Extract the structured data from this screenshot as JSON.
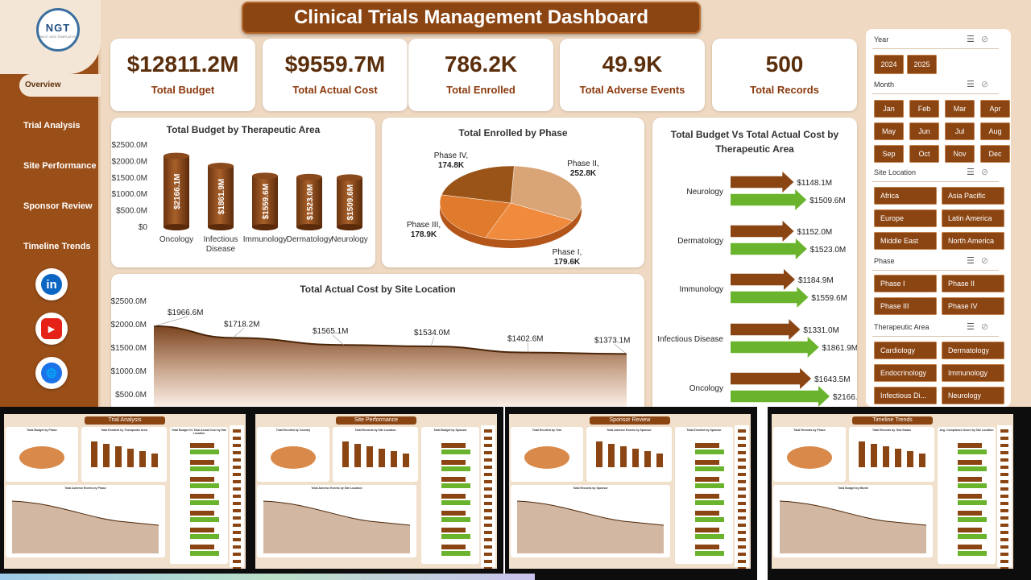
{
  "logo": {
    "text": "NGT",
    "sub": "NEXT GEN TEMPLATES"
  },
  "title": "Clinical Trials Management Dashboard",
  "nav": [
    {
      "label": "Overview",
      "active": true
    },
    {
      "label": "Trial Analysis"
    },
    {
      "label": "Site Performance"
    },
    {
      "label": "Sponsor Review"
    },
    {
      "label": "Timeline Trends"
    }
  ],
  "social": [
    {
      "name": "linkedin-icon",
      "text": "in",
      "color": "#0a66c2"
    },
    {
      "name": "youtube-icon",
      "text": "▶",
      "color": "#e62117"
    },
    {
      "name": "web-icon",
      "text": "🌐",
      "color": "#1a73e8"
    }
  ],
  "kpis": [
    {
      "value": "$12811.2M",
      "label": "Total Budget"
    },
    {
      "value": "$9559.7M",
      "label": "Total Actual Cost"
    },
    {
      "value": "786.2K",
      "label": "Total Enrolled"
    },
    {
      "value": "49.9K",
      "label": "Total Adverse Events"
    },
    {
      "value": "500",
      "label": "Total Records"
    }
  ],
  "colors": {
    "accent": "#8b4513",
    "dark": "#5b2e0c",
    "green": "#6ab42d",
    "bg": "#efd9c2"
  },
  "chart_data": [
    {
      "type": "bar",
      "title": "Total Budget by Therapeutic Area",
      "categories": [
        "Oncology",
        "Infectious Disease",
        "Immunology",
        "Dermatology",
        "Neurology"
      ],
      "values": [
        2166.1,
        1861.9,
        1559.6,
        1523.0,
        1509.6
      ],
      "data_labels": [
        "$2166.1M",
        "$1861.9M",
        "$1559.6M",
        "$1523.0M",
        "$1509.6M"
      ],
      "yticks": [
        "$2500.0M",
        "$2000.0M",
        "$1500.0M",
        "$1000.0M",
        "$500.0M",
        "$0"
      ],
      "ylim": [
        0,
        2500
      ]
    },
    {
      "type": "pie",
      "title": "Total Enrolled by Phase",
      "slices": [
        {
          "name": "Phase II",
          "value": 252.8,
          "label": "Phase II,\n252.8K",
          "color": "#d9a577"
        },
        {
          "name": "Phase I",
          "value": 179.6,
          "label": "Phase I,\n179.6K",
          "color": "#f08a3c"
        },
        {
          "name": "Phase III",
          "value": 178.9,
          "label": "Phase III,\n178.9K",
          "color": "#e07a2c"
        },
        {
          "name": "Phase IV",
          "value": 174.8,
          "label": "Phase IV,\n174.8K",
          "color": "#9a5418"
        }
      ]
    },
    {
      "type": "bar",
      "title": "Total Budget Vs Total Actual Cost by Therapeutic Area",
      "categories": [
        "Neurology",
        "Dermatology",
        "Immunology",
        "Infectious Disease",
        "Oncology"
      ],
      "series": [
        {
          "values": [
            1148.1,
            1152.0,
            1184.9,
            1331.0,
            1643.5
          ],
          "labels": [
            "$1148.1M",
            "$1152.0M",
            "$1184.9M",
            "$1331.0M",
            "$1643.5M"
          ],
          "color": "#8b4513"
        },
        {
          "values": [
            1509.6,
            1523.0,
            1559.6,
            1861.9,
            2166.1
          ],
          "labels": [
            "$1509.6M",
            "$1523.0M",
            "$1559.6M",
            "$1861.9M",
            "$2166.1M"
          ],
          "color": "#6ab42d"
        }
      ]
    },
    {
      "type": "area",
      "title": "Total Actual Cost by Site Location",
      "values": [
        1966.6,
        1718.2,
        1565.1,
        1534.0,
        1402.6,
        1373.1
      ],
      "data_labels": [
        "$1966.6M",
        "$1718.2M",
        "$1565.1M",
        "$1534.0M",
        "$1402.6M",
        "$1373.1M"
      ],
      "yticks": [
        "$2500.0M",
        "$2000.0M",
        "$1500.0M",
        "$1000.0M",
        "$500.0M"
      ],
      "ylim": [
        0,
        2500
      ]
    }
  ],
  "slicers": [
    {
      "title": "Year",
      "items": [
        "2024",
        "2025"
      ]
    },
    {
      "title": "Month",
      "items": [
        "Jan",
        "Feb",
        "Mar",
        "Apr",
        "May",
        "Jun",
        "Jul",
        "Aug",
        "Sep",
        "Oct",
        "Nov",
        "Dec"
      ]
    },
    {
      "title": "Site Location",
      "items": [
        "Africa",
        "Asia Pacific",
        "Europe",
        "Latin America",
        "Middle East",
        "North America"
      ]
    },
    {
      "title": "Phase",
      "items": [
        "Phase I",
        "Phase II",
        "Phase III",
        "Phase IV"
      ]
    },
    {
      "title": "Therapeutic Area",
      "items": [
        "Cardiology",
        "Dermatology",
        "Endocrinology",
        "Immunology",
        "Infectious Di...",
        "Neurology"
      ]
    }
  ],
  "thumbnails": [
    {
      "title": "Trial Analysis",
      "cards": [
        "Total Budget by Phase",
        "Total Enrolled by Therapeutic Area",
        "Total Budget Vs Total Actual Cost by Site Location",
        "Total Adverse Events by Phase"
      ]
    },
    {
      "title": "Site Performance",
      "cards": [
        "Total Enrolled by Country",
        "Total Records by Site Location",
        "Total Budget by Sponsor",
        "Total Adverse Events by Site Location"
      ]
    },
    {
      "title": "Sponsor Review",
      "cards": [
        "Total Enrolled by Year",
        "Total Adverse Events by Sponsor",
        "Total Enrolled by Sponsor",
        "Total Records by Sponsor"
      ]
    },
    {
      "title": "Timeline Trends",
      "cards": [
        "Total Records by Phase",
        "Total Records by Trial Status",
        "Avg. Compliance Score by Site Location",
        "Total Budget by Month"
      ]
    }
  ]
}
